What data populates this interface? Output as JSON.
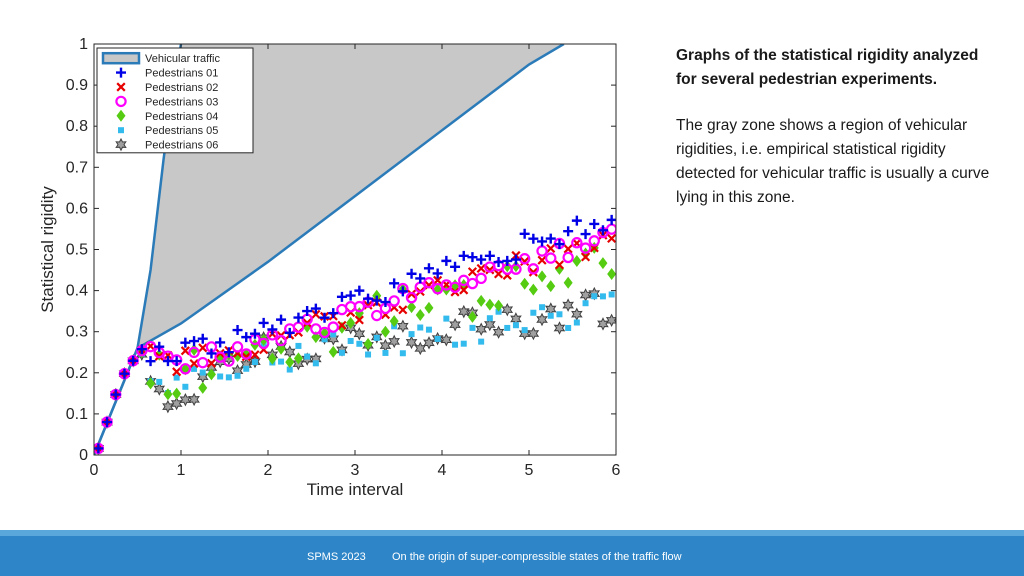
{
  "chart_data": {
    "type": "scatter",
    "xlabel": "Time interval",
    "ylabel": "Statistical rigidity",
    "xlim": [
      0,
      6
    ],
    "ylim": [
      0,
      1
    ],
    "x_ticks": [
      "0",
      "1",
      "2",
      "3",
      "4",
      "5",
      "6"
    ],
    "y_ticks": [
      "0",
      "0.1",
      "0.2",
      "0.3",
      "0.4",
      "0.5",
      "0.6",
      "0.7",
      "0.8",
      "0.9",
      "1"
    ],
    "legend_position": "top-left",
    "vehicular_zone": {
      "name": "Vehicular traffic",
      "upper": [
        [
          0,
          0
        ],
        [
          0.5,
          0.26
        ],
        [
          0.65,
          0.45
        ],
        [
          0.8,
          0.72
        ],
        [
          0.9,
          0.88
        ],
        [
          1,
          1
        ]
      ],
      "lower": [
        [
          0,
          0
        ],
        [
          0.5,
          0.26
        ],
        [
          1,
          0.32
        ],
        [
          2,
          0.47
        ],
        [
          3,
          0.63
        ],
        [
          4,
          0.79
        ],
        [
          5,
          0.95
        ],
        [
          5.4,
          1
        ]
      ]
    },
    "series": [
      {
        "name": "Pedestrians 01",
        "marker": "plus",
        "color": "#0000e6"
      },
      {
        "name": "Pedestrians 02",
        "marker": "x",
        "color": "#e60000"
      },
      {
        "name": "Pedestrians 03",
        "marker": "circle",
        "color": "#ff00ff"
      },
      {
        "name": "Pedestrians 04",
        "marker": "diamond",
        "color": "#55cc11"
      },
      {
        "name": "Pedestrians 05",
        "marker": "square",
        "color": "#33bbee"
      },
      {
        "name": "Pedestrians 06",
        "marker": "hexagram",
        "color": "#707070"
      }
    ]
  },
  "side": {
    "title": "Graphs of the statistical rigidity analyzed for several pedestrian experiments.",
    "body": "The gray zone shows a region of vehicular rigidities, i.e. empirical statistical rigidity detected for vehicular traffic is usually a curve lying in this zone."
  },
  "footer": {
    "left": "SPMS 2023",
    "right": "On the origin of super-compressible states of the traffic flow"
  }
}
